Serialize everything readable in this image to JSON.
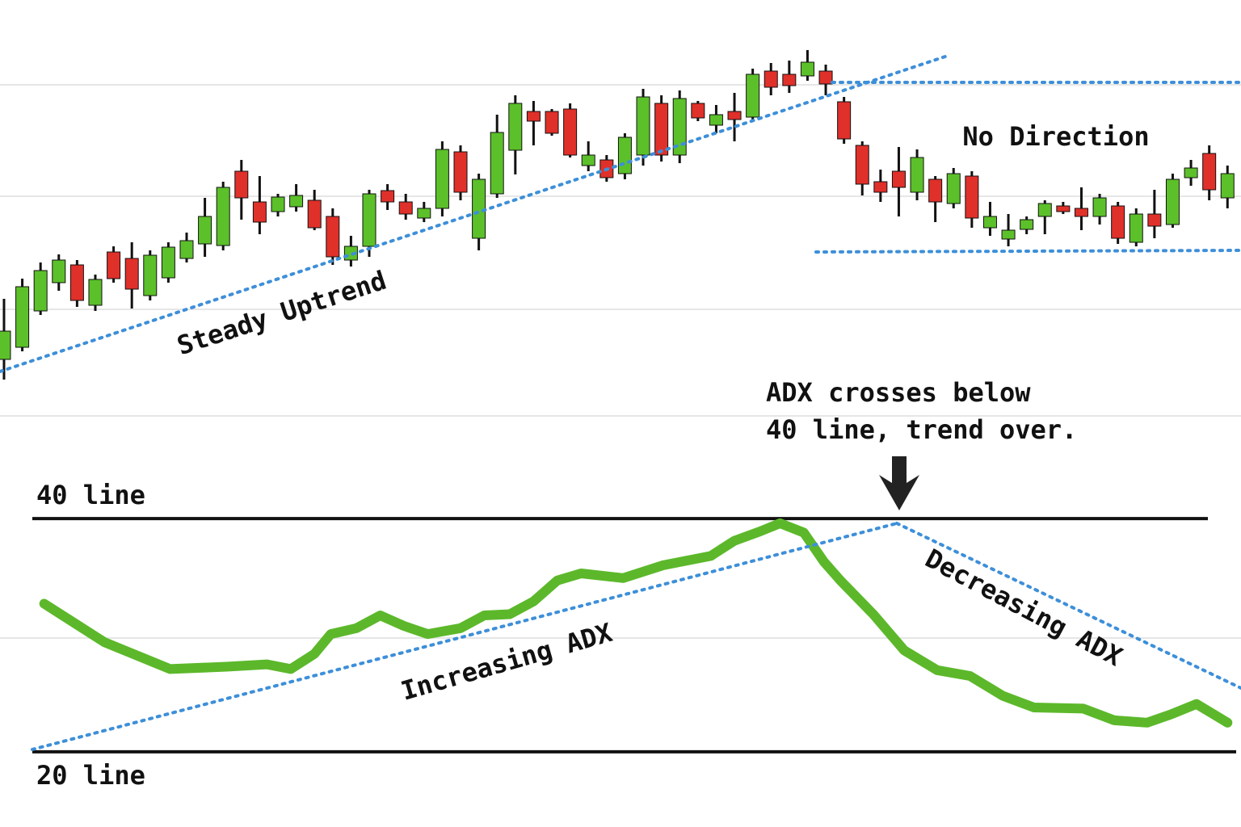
{
  "chart_data": [
    {
      "type": "candlestick",
      "xlim": [
        -0.22,
        67.74
      ],
      "ylim": [
        0,
        600
      ],
      "up_color": "#5cc02a",
      "down_color": "#e0302a",
      "open": [
        155,
        170,
        215,
        250,
        272,
        222,
        288,
        280,
        234,
        256,
        280,
        298,
        296,
        388,
        350,
        338,
        344,
        352,
        332,
        278,
        295,
        364,
        350,
        330,
        342,
        412,
        305,
        360,
        414,
        462,
        462,
        465,
        395,
        402,
        385,
        408,
        472,
        408,
        472,
        445,
        462,
        455,
        512,
        508,
        506,
        512,
        474,
        420,
        375,
        388,
        362,
        378,
        348,
        382,
        318,
        304,
        316,
        332,
        345,
        342,
        332,
        345,
        300,
        335,
        322,
        380,
        410,
        355
      ],
      "high": [
        230,
        255,
        275,
        285,
        278,
        260,
        295,
        300,
        290,
        300,
        312,
        355,
        375,
        402,
        382,
        360,
        372,
        365,
        342,
        308,
        365,
        372,
        360,
        350,
        425,
        420,
        385,
        458,
        482,
        475,
        465,
        472,
        425,
        408,
        435,
        490,
        482,
        488,
        475,
        470,
        485,
        515,
        522,
        525,
        538,
        520,
        480,
        425,
        390,
        418,
        415,
        382,
        392,
        388,
        350,
        335,
        332,
        352,
        350,
        368,
        360,
        350,
        342,
        365,
        385,
        402,
        420,
        395
      ],
      "low": [
        130,
        165,
        210,
        240,
        220,
        215,
        250,
        218,
        228,
        250,
        275,
        282,
        290,
        328,
        310,
        332,
        338,
        315,
        272,
        270,
        282,
        340,
        328,
        325,
        332,
        352,
        290,
        355,
        384,
        420,
        432,
        405,
        388,
        375,
        378,
        395,
        400,
        398,
        450,
        435,
        425,
        450,
        482,
        485,
        500,
        482,
        422,
        358,
        350,
        332,
        352,
        325,
        342,
        318,
        308,
        295,
        310,
        310,
        335,
        315,
        322,
        298,
        295,
        305,
        318,
        370,
        352,
        342
      ],
      "close": [
        190,
        245,
        265,
        278,
        228,
        254,
        255,
        242,
        284,
        294,
        302,
        332,
        368,
        355,
        325,
        356,
        358,
        318,
        282,
        295,
        360,
        350,
        335,
        342,
        415,
        362,
        378,
        436,
        472,
        450,
        435,
        408,
        408,
        380,
        430,
        480,
        408,
        478,
        454,
        458,
        452,
        508,
        492,
        494,
        523,
        496,
        428,
        372,
        362,
        368,
        405,
        350,
        385,
        330,
        332,
        315,
        328,
        348,
        338,
        332,
        355,
        305,
        335,
        320,
        378,
        392,
        365,
        385
      ],
      "annotations": [
        {
          "text": "Steady Uptrend"
        },
        {
          "text": "No Direction"
        }
      ]
    },
    {
      "type": "line",
      "xlim": [
        -0.22,
        67.74
      ],
      "ylim": [
        15,
        45
      ],
      "color": "#5cb82a",
      "x": [
        2.2,
        5.5,
        9.1,
        12.2,
        14.4,
        15.7,
        17.0,
        17.9,
        19.3,
        20.6,
        21.9,
        23.2,
        25.0,
        26.3,
        27.7,
        29.0,
        30.3,
        31.6,
        33.9,
        36.1,
        38.7,
        40.0,
        41.4,
        42.5,
        43.8,
        44.9,
        45.8,
        47.6,
        49.3,
        51.1,
        52.9,
        54.7,
        56.4,
        59.1,
        60.8,
        62.6,
        63.9,
        65.3,
        67.0
      ],
      "values": [
        32.7,
        29.4,
        27.1,
        27.3,
        27.5,
        27.1,
        28.4,
        30.1,
        30.6,
        31.7,
        30.8,
        30.1,
        30.6,
        31.7,
        31.8,
        32.9,
        34.7,
        35.3,
        34.9,
        36.0,
        36.8,
        38.1,
        38.9,
        39.6,
        38.8,
        36.3,
        34.7,
        31.8,
        28.7,
        27.0,
        26.5,
        24.8,
        23.8,
        23.7,
        22.7,
        22.5,
        23.2,
        24.1,
        22.5
      ],
      "reference_lines": [
        {
          "value": 40,
          "label": "40 line"
        },
        {
          "value": 20,
          "label": "20 line"
        }
      ],
      "annotations": [
        {
          "text": "ADX crosses below"
        },
        {
          "text": "40 line, trend over."
        },
        {
          "text": "Increasing ADX"
        },
        {
          "text": "Decreasing ADX"
        }
      ]
    }
  ]
}
